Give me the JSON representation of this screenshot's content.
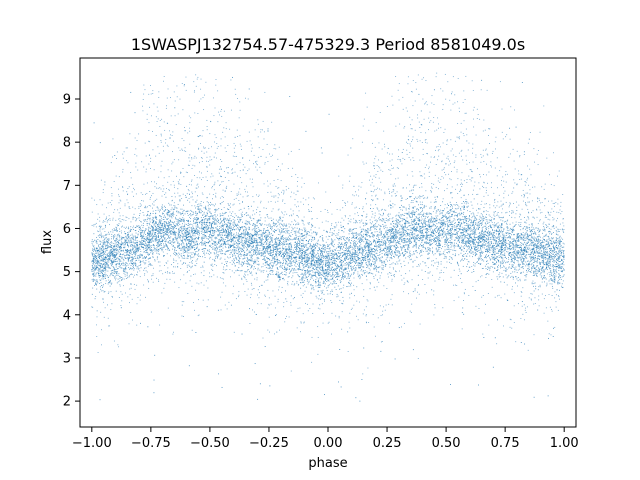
{
  "chart_data": {
    "type": "scatter",
    "title": "1SWASPJ132754.57-475329.3 Period 8581049.0s",
    "xlabel": "phase",
    "ylabel": "flux",
    "xlim": [
      -1.05,
      1.05
    ],
    "ylim": [
      1.4,
      9.95
    ],
    "xticks": [
      -1.0,
      -0.75,
      -0.5,
      -0.25,
      0.0,
      0.25,
      0.5,
      0.75,
      1.0
    ],
    "xtick_labels": [
      "−1.00",
      "−0.75",
      "−0.50",
      "−0.25",
      "0.00",
      "0.25",
      "0.50",
      "0.75",
      "1.00"
    ],
    "yticks": [
      2,
      3,
      4,
      5,
      6,
      7,
      8,
      9
    ],
    "ytick_labels": [
      "2",
      "3",
      "4",
      "5",
      "6",
      "7",
      "8",
      "9"
    ],
    "grid": false,
    "marker_color": "#1f77b4",
    "series": [
      {
        "x": [
          -0.98,
          -0.93,
          -0.88,
          -0.83,
          -0.78,
          -0.73,
          -0.68,
          -0.63,
          -0.58,
          -0.53,
          -0.48,
          -0.43,
          -0.38,
          -0.33,
          -0.28,
          -0.23,
          -0.18,
          -0.13,
          -0.08,
          -0.03,
          0.02,
          0.07,
          0.12,
          0.17,
          0.22,
          0.27,
          0.32,
          0.37,
          0.42,
          0.47,
          0.52,
          0.57,
          0.62,
          0.67,
          0.72,
          0.77,
          0.82,
          0.87,
          0.92,
          0.97
        ],
        "y": [
          5.2,
          5.3,
          5.4,
          5.5,
          5.7,
          5.9,
          6.0,
          5.9,
          5.8,
          6.0,
          5.9,
          5.8,
          5.7,
          5.6,
          5.6,
          5.5,
          5.4,
          5.4,
          5.3,
          5.1,
          5.2,
          5.3,
          5.4,
          5.5,
          5.6,
          5.8,
          5.9,
          6.0,
          5.9,
          5.9,
          6.0,
          5.9,
          5.8,
          5.7,
          5.6,
          5.6,
          5.5,
          5.4,
          5.4,
          5.3
        ]
      }
    ]
  }
}
